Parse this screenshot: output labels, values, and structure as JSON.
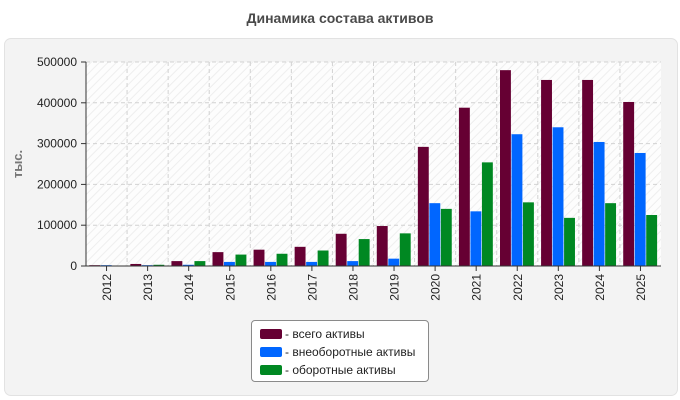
{
  "chart_data": {
    "type": "bar",
    "title": "Динамика состава активов",
    "xlabel": "",
    "ylabel": "тыс.",
    "ylim": [
      0,
      500000
    ],
    "yticks": [
      0,
      100000,
      200000,
      300000,
      400000,
      500000
    ],
    "tick_labels": [
      "0",
      "100000",
      "200000",
      "300000",
      "400000",
      "500000"
    ],
    "grid": true,
    "legend_position": "bottom-center",
    "categories": [
      "2012",
      "2013",
      "2014",
      "2015",
      "2016",
      "2017",
      "2018",
      "2019",
      "2020",
      "2021",
      "2022",
      "2023",
      "2024",
      "2025"
    ],
    "series": [
      {
        "name": "всего активы",
        "color": "#660033",
        "values": [
          2000,
          5000,
          12000,
          34000,
          40000,
          47000,
          79000,
          98000,
          292000,
          388000,
          480000,
          456000,
          456000,
          402000
        ]
      },
      {
        "name": "внеоборотные активы",
        "color": "#0066ff",
        "values": [
          2000,
          2000,
          3000,
          10000,
          10000,
          10000,
          12000,
          18000,
          154000,
          134000,
          323000,
          340000,
          304000,
          277000
        ]
      },
      {
        "name": "оборотные активы",
        "color": "#008822",
        "values": [
          1000,
          3000,
          12000,
          28000,
          30000,
          38000,
          66000,
          80000,
          140000,
          254000,
          156000,
          118000,
          154000,
          125000
        ]
      }
    ]
  },
  "legend": {
    "items": [
      {
        "label": "- всего активы",
        "color": "#660033"
      },
      {
        "label": "- внеоборотные активы",
        "color": "#0066ff"
      },
      {
        "label": "- оборотные активы",
        "color": "#008822"
      }
    ]
  }
}
